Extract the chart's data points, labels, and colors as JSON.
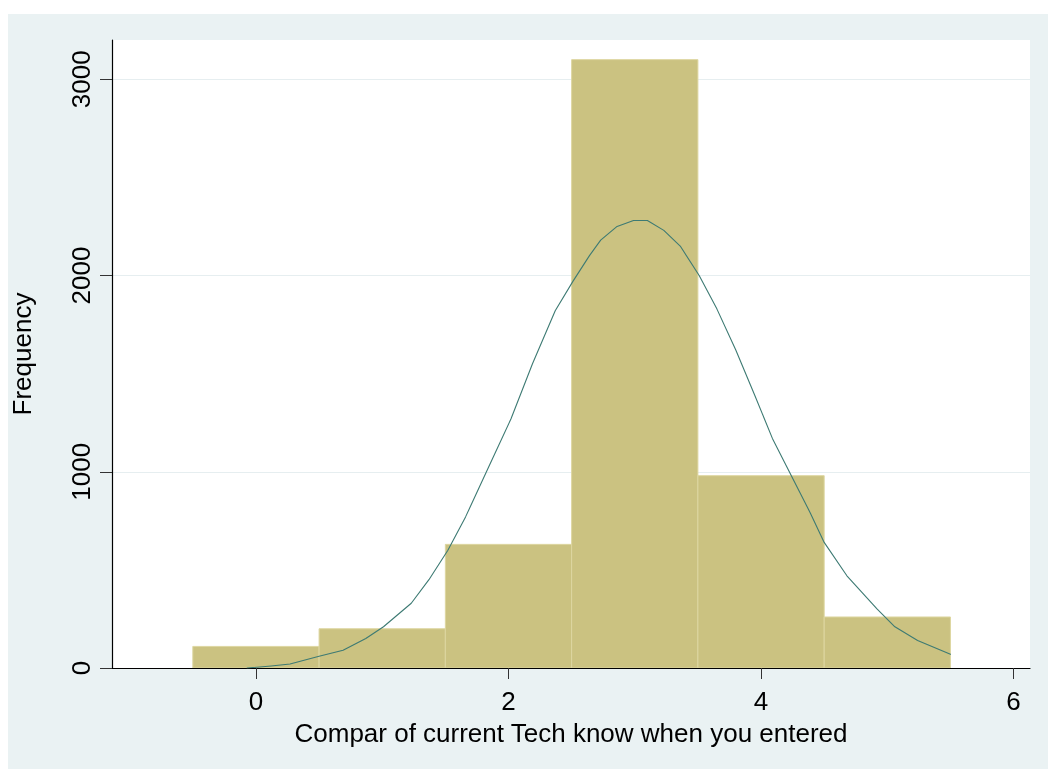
{
  "chart_data": {
    "type": "histogram",
    "xlabel": "Compar of current Tech know when you entered",
    "ylabel": "Frequency",
    "bins": [
      -0.5,
      0.5,
      1.5,
      2.5,
      3.5,
      4.5,
      5.5
    ],
    "values": [
      110,
      200,
      630,
      3100,
      980,
      260
    ],
    "color": "#cbc281",
    "series": [
      {
        "type": "line",
        "color": "#3d7a73",
        "x": [
          -0.07,
          0.12,
          0.27,
          0.5,
          0.69,
          0.87,
          1.01,
          1.23,
          1.37,
          1.52,
          1.66,
          1.84,
          2.02,
          2.19,
          2.37,
          2.51,
          2.64,
          2.73,
          2.86,
          2.99,
          3.1,
          3.23,
          3.36,
          3.51,
          3.65,
          3.8,
          3.95,
          4.09,
          4.24,
          4.39,
          4.5,
          4.68,
          4.92,
          5.06,
          5.24,
          5.5
        ],
        "values": [
          0,
          10,
          20,
          60,
          90,
          150,
          210,
          330,
          450,
          600,
          770,
          1020,
          1270,
          1550,
          1820,
          1970,
          2100,
          2180,
          2250,
          2280,
          2280,
          2230,
          2150,
          2000,
          1830,
          1620,
          1390,
          1170,
          980,
          790,
          640,
          470,
          300,
          210,
          140,
          70
        ]
      }
    ],
    "xlim": [
      -1.14,
      6.13
    ],
    "ylim": [
      0,
      3200
    ],
    "xticks": [
      0,
      2,
      4,
      6
    ],
    "yticks": [
      0,
      1000,
      2000,
      3000
    ],
    "grid": "y"
  }
}
